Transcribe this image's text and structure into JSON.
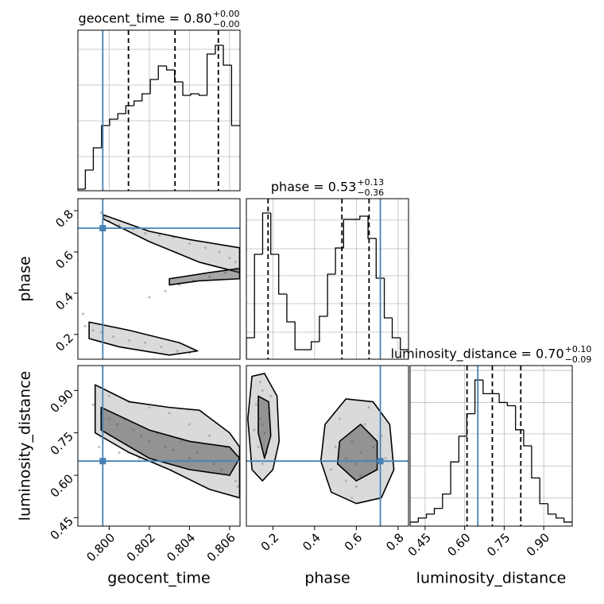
{
  "chart_data": [
    {
      "type": "histogram",
      "title": "geocent_time = 0.80",
      "title_plus": "+0.00",
      "title_minus": "−0.00",
      "bins": [
        0.7984,
        0.79881,
        0.79921,
        0.79962,
        0.80002,
        0.80043,
        0.80083,
        0.80124,
        0.80164,
        0.80205,
        0.80245,
        0.80286,
        0.80326,
        0.80367,
        0.80407,
        0.80448,
        0.80488,
        0.80529,
        0.80569,
        0.8061,
        0.8065
      ],
      "counts": [
        2,
        26,
        54,
        82,
        90,
        97,
        107,
        113,
        122,
        140,
        157,
        152,
        137,
        120,
        122,
        120,
        172,
        183,
        158,
        82
      ],
      "xlim": [
        0.79844,
        0.80652
      ],
      "ylim": [
        0,
        202
      ],
      "xgrid": [
        0.8,
        0.802,
        0.804,
        0.806
      ],
      "ygrid": [
        43,
        88,
        133,
        178
      ],
      "quantiles": [
        0.80096,
        0.80328,
        0.80544
      ],
      "truth_x": 0.79968
    },
    {
      "type": "contour2d",
      "ylabel": "phase",
      "x": [
        0.7996,
        0.7998,
        0.8,
        0.8005,
        0.8012,
        0.8018,
        0.8025,
        0.8032,
        0.804,
        0.8048,
        0.8055,
        0.806,
        0.8063,
        0.8035,
        0.8042,
        0.805,
        0.8058,
        0.8063,
        0.802,
        0.8028,
        0.7988,
        0.7992,
        0.7996,
        0.8002,
        0.801,
        0.8018,
        0.8026,
        0.8034,
        0.804,
        0.7987
      ],
      "y": [
        0.79,
        0.77,
        0.75,
        0.73,
        0.71,
        0.69,
        0.68,
        0.67,
        0.64,
        0.62,
        0.6,
        0.57,
        0.55,
        0.44,
        0.46,
        0.48,
        0.5,
        0.52,
        0.38,
        0.41,
        0.24,
        0.22,
        0.21,
        0.19,
        0.17,
        0.16,
        0.14,
        0.12,
        0.11,
        0.3
      ],
      "contours": [
        {
          "x": [
            0.7997,
            0.802,
            0.804,
            0.8065,
            0.8065,
            0.8045,
            0.802,
            0.7997
          ],
          "y": [
            0.78,
            0.7,
            0.66,
            0.62,
            0.5,
            0.55,
            0.65,
            0.76
          ]
        },
        {
          "x": [
            0.803,
            0.805,
            0.8065,
            0.8065,
            0.8045,
            0.803
          ],
          "y": [
            0.47,
            0.5,
            0.52,
            0.47,
            0.46,
            0.44
          ]
        },
        {
          "x": [
            0.799,
            0.801,
            0.8035,
            0.8044,
            0.803,
            0.8005,
            0.799
          ],
          "y": [
            0.26,
            0.22,
            0.16,
            0.12,
            0.1,
            0.14,
            0.18
          ]
        }
      ],
      "xlim": [
        0.79844,
        0.80652
      ],
      "ylim": [
        0.08,
        0.858
      ],
      "yticks": [
        0.2,
        0.4,
        0.6,
        0.8
      ],
      "truth_x": 0.79968,
      "truth_y": 0.715
    },
    {
      "type": "histogram",
      "title": "phase = 0.53",
      "title_plus": "+0.13",
      "title_minus": "−0.36",
      "bins": [
        0.073,
        0.112,
        0.151,
        0.19,
        0.228,
        0.267,
        0.306,
        0.345,
        0.384,
        0.423,
        0.462,
        0.5,
        0.539,
        0.578,
        0.617,
        0.656,
        0.695,
        0.734,
        0.772,
        0.811,
        0.85
      ],
      "counts": [
        27,
        132,
        184,
        132,
        82,
        47,
        12,
        12,
        22,
        54,
        107,
        140,
        176,
        176,
        180,
        152,
        102,
        52,
        27,
        12
      ],
      "xlim": [
        0.073,
        0.85
      ],
      "ylim": [
        0,
        202
      ],
      "xgrid": [
        0.2,
        0.4,
        0.6,
        0.8
      ],
      "ygrid": [
        34,
        70,
        105,
        139,
        175
      ],
      "quantiles": [
        0.177,
        0.531,
        0.661
      ],
      "truth_x": 0.715
    },
    {
      "type": "contour2d",
      "xlabel": "geocent_time",
      "ylabel": "luminosity_distance",
      "x": [
        0.7992,
        0.7996,
        0.8,
        0.8004,
        0.8008,
        0.8012,
        0.8016,
        0.802,
        0.8024,
        0.8028,
        0.8032,
        0.8036,
        0.804,
        0.8044,
        0.8048,
        0.8052,
        0.8056,
        0.806,
        0.8063,
        0.8064,
        0.8,
        0.801,
        0.802,
        0.803,
        0.804,
        0.805,
        0.8058,
        0.7995,
        0.8005,
        0.8015
      ],
      "y": [
        0.85,
        0.82,
        0.8,
        0.78,
        0.8,
        0.76,
        0.74,
        0.72,
        0.75,
        0.7,
        0.69,
        0.72,
        0.66,
        0.68,
        0.65,
        0.64,
        0.62,
        0.6,
        0.58,
        0.56,
        0.88,
        0.86,
        0.84,
        0.82,
        0.78,
        0.74,
        0.7,
        0.7,
        0.68,
        0.66
      ],
      "contours": [
        {
          "x": [
            0.7993,
            0.801,
            0.803,
            0.8045,
            0.806,
            0.8065,
            0.8065,
            0.805,
            0.803,
            0.801,
            0.7993
          ],
          "y": [
            0.92,
            0.86,
            0.84,
            0.83,
            0.75,
            0.7,
            0.52,
            0.55,
            0.62,
            0.68,
            0.75
          ]
        },
        {
          "x": [
            0.7996,
            0.802,
            0.804,
            0.806,
            0.8065,
            0.806,
            0.804,
            0.802,
            0.7996
          ],
          "y": [
            0.84,
            0.76,
            0.72,
            0.7,
            0.66,
            0.6,
            0.62,
            0.66,
            0.76
          ]
        }
      ],
      "xlim": [
        0.79844,
        0.80652
      ],
      "ylim": [
        0.42,
        0.988
      ],
      "xticks": [
        {
          "value": 0.8,
          "label": "0.800"
        },
        {
          "value": 0.802,
          "label": "0.802"
        },
        {
          "value": 0.804,
          "label": "0.804"
        },
        {
          "value": 0.806,
          "label": "0.806"
        }
      ],
      "yticks": [
        0.45,
        {
          "value": 0.6,
          "label": "0.60"
        },
        0.75,
        {
          "value": 0.9,
          "label": "0.90"
        }
      ],
      "truth_x": 0.79968,
      "truth_y": 0.65
    },
    {
      "type": "contour2d",
      "xlabel": "phase",
      "x": [
        0.12,
        0.14,
        0.15,
        0.16,
        0.18,
        0.13,
        0.15,
        0.17,
        0.11,
        0.19,
        0.15,
        0.14,
        0.5,
        0.55,
        0.58,
        0.6,
        0.62,
        0.65,
        0.68,
        0.7,
        0.55,
        0.6,
        0.64,
        0.72,
        0.48,
        0.52,
        0.66,
        0.74,
        0.58,
        0.62
      ],
      "y": [
        0.85,
        0.8,
        0.78,
        0.75,
        0.82,
        0.7,
        0.9,
        0.68,
        0.76,
        0.88,
        0.64,
        0.93,
        0.7,
        0.66,
        0.72,
        0.64,
        0.68,
        0.65,
        0.7,
        0.62,
        0.58,
        0.56,
        0.78,
        0.74,
        0.62,
        0.8,
        0.84,
        0.66,
        0.52,
        0.6
      ],
      "contours": [
        {
          "x": [
            0.1,
            0.16,
            0.22,
            0.23,
            0.2,
            0.15,
            0.1,
            0.08
          ],
          "y": [
            0.95,
            0.96,
            0.88,
            0.72,
            0.62,
            0.58,
            0.62,
            0.8
          ]
        },
        {
          "x": [
            0.13,
            0.18,
            0.19,
            0.16,
            0.13
          ],
          "y": [
            0.88,
            0.86,
            0.74,
            0.66,
            0.75
          ]
        },
        {
          "x": [
            0.45,
            0.55,
            0.68,
            0.76,
            0.78,
            0.72,
            0.6,
            0.48,
            0.43
          ],
          "y": [
            0.78,
            0.87,
            0.86,
            0.78,
            0.62,
            0.52,
            0.5,
            0.54,
            0.65
          ]
        },
        {
          "x": [
            0.52,
            0.62,
            0.7,
            0.7,
            0.6,
            0.51
          ],
          "y": [
            0.72,
            0.78,
            0.72,
            0.62,
            0.58,
            0.64
          ]
        }
      ],
      "xlim": [
        0.073,
        0.85
      ],
      "ylim": [
        0.42,
        0.988
      ],
      "xticks": [
        0.2,
        0.4,
        0.6,
        0.8
      ],
      "truth_x": 0.715,
      "truth_y": 0.65
    },
    {
      "type": "histogram",
      "title": "luminosity_distance = 0.70",
      "title_plus": "+0.10",
      "title_minus": "−0.09",
      "xlabel": "luminosity_distance",
      "bins": [
        0.393,
        0.424,
        0.455,
        0.485,
        0.516,
        0.547,
        0.578,
        0.608,
        0.639,
        0.67,
        0.701,
        0.731,
        0.762,
        0.793,
        0.824,
        0.854,
        0.885,
        0.916,
        0.947,
        0.977,
        1.008
      ],
      "counts": [
        5,
        10,
        15,
        22,
        40,
        80,
        112,
        140,
        182,
        165,
        165,
        154,
        150,
        120,
        100,
        60,
        28,
        15,
        10,
        5
      ],
      "xlim": [
        0.393,
        1.008
      ],
      "ylim": [
        0,
        200
      ],
      "xticks": [
        0.45,
        {
          "value": 0.6,
          "label": "0.60"
        },
        0.75,
        {
          "value": 0.9,
          "label": "0.90"
        }
      ],
      "ygrid": [
        35,
        75,
        115,
        154,
        194
      ],
      "quantiles": [
        0.609,
        0.705,
        0.813
      ],
      "truth_x": 0.65
    }
  ]
}
